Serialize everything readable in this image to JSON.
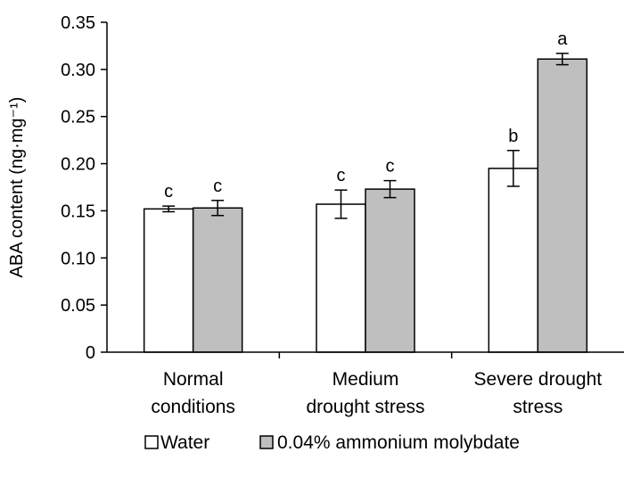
{
  "chart_data": {
    "type": "bar",
    "ylabel": "ABA content (ng·mg⁻¹)",
    "ylim": [
      0,
      0.35
    ],
    "yticks": [
      "0",
      "0.05",
      "0.10",
      "0.15",
      "0.20",
      "0.25",
      "0.30",
      "0.35"
    ],
    "categories": [
      [
        "Normal",
        "conditions"
      ],
      [
        "Medium",
        "drought stress"
      ],
      [
        "Severe drought",
        "stress"
      ]
    ],
    "series": [
      {
        "name": "Water",
        "color": "#ffffff",
        "values": [
          0.152,
          0.157,
          0.195
        ],
        "errors": [
          0.003,
          0.015,
          0.019
        ],
        "labels": [
          "c",
          "c",
          "b"
        ]
      },
      {
        "name": "0.04% ammonium molybdate",
        "color": "#bfbfbf",
        "values": [
          0.153,
          0.173,
          0.311
        ],
        "errors": [
          0.008,
          0.009,
          0.006
        ],
        "labels": [
          "c",
          "c",
          "a"
        ]
      }
    ],
    "legend_position": "bottom",
    "grid": false
  }
}
